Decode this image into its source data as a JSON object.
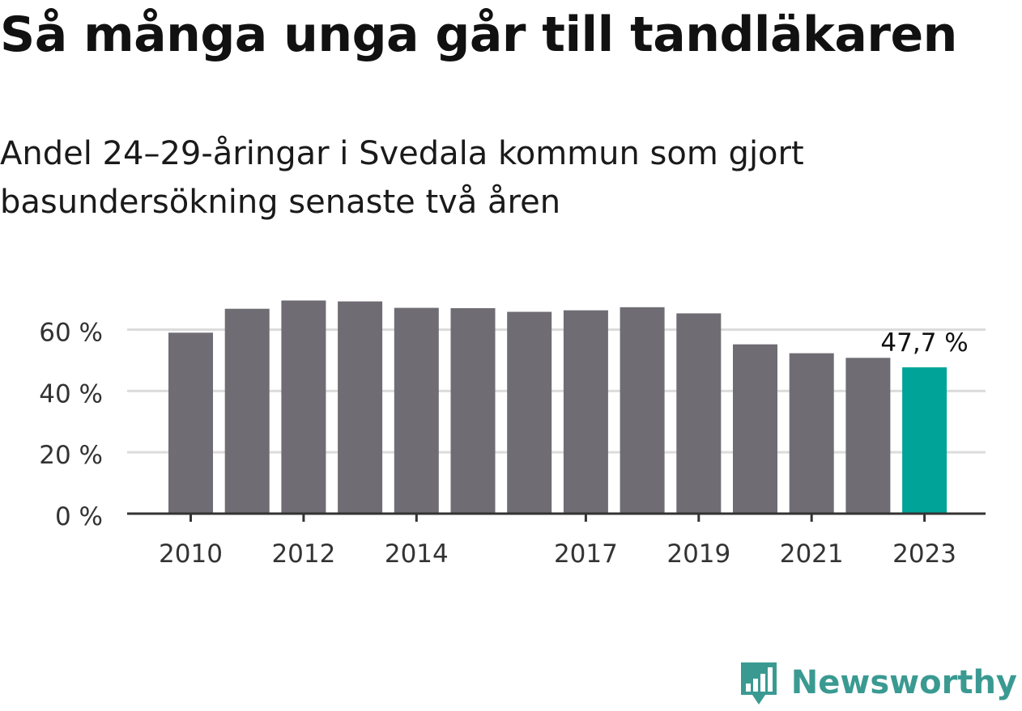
{
  "title": "Så många unga går till tandläkaren",
  "subtitle": "Andel 24–29-åringar i Svedala kommun som gjort basundersökning senaste två åren",
  "brand": {
    "name": "Newsworthy",
    "icon": "newsworthy-logo-icon",
    "color": "#3a9a92"
  },
  "chart_data": {
    "type": "bar",
    "categories": [
      "2010",
      "2011",
      "2012",
      "2013",
      "2014",
      "2015",
      "2016",
      "2017",
      "2018",
      "2019",
      "2020",
      "2021",
      "2022",
      "2023"
    ],
    "values": [
      59.0,
      66.8,
      69.5,
      69.2,
      67.1,
      67.0,
      65.8,
      66.3,
      67.3,
      65.3,
      55.2,
      52.3,
      50.8,
      47.7
    ],
    "tick_labels_shown": [
      "2010",
      "2012",
      "2014",
      "2017",
      "2019",
      "2021",
      "2023"
    ],
    "y_ticks": [
      0,
      20,
      40,
      60
    ],
    "y_tick_labels": [
      "0 %",
      "20 %",
      "40 %",
      "60 %"
    ],
    "ylim": [
      0,
      72
    ],
    "grid": true,
    "bar_color": "#6f6d73",
    "highlight_color": "#00a398",
    "highlight_index": 13,
    "data_label": "47,7 %"
  }
}
